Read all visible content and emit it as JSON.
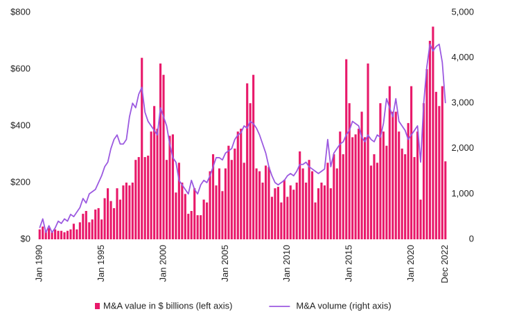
{
  "chart_data": {
    "type": "bar_line",
    "categories": [
      "Jan 1990",
      null,
      null,
      null,
      null,
      null,
      null,
      null,
      null,
      null,
      null,
      null,
      null,
      null,
      null,
      null,
      null,
      null,
      null,
      null,
      "Jan 1995",
      null,
      null,
      null,
      null,
      null,
      null,
      null,
      null,
      null,
      null,
      null,
      null,
      null,
      null,
      null,
      null,
      null,
      null,
      null,
      "Jan 2000",
      null,
      null,
      null,
      null,
      null,
      null,
      null,
      null,
      null,
      null,
      null,
      null,
      null,
      null,
      null,
      null,
      null,
      null,
      null,
      "Jan 2005",
      null,
      null,
      null,
      null,
      null,
      null,
      null,
      null,
      null,
      null,
      null,
      null,
      null,
      null,
      null,
      null,
      null,
      null,
      null,
      "Jan 2010",
      null,
      null,
      null,
      null,
      null,
      null,
      null,
      null,
      null,
      null,
      null,
      null,
      null,
      null,
      null,
      null,
      null,
      null,
      null,
      "Jan 2015",
      null,
      null,
      null,
      null,
      null,
      null,
      null,
      null,
      null,
      null,
      null,
      null,
      null,
      null,
      null,
      null,
      null,
      null,
      null,
      "Jan 2020",
      null,
      null,
      null,
      null,
      null,
      null,
      null,
      null,
      null,
      null,
      "Dec 2022"
    ],
    "series": [
      {
        "name": "M&A value in $ billions (left axis)",
        "color": "#e8196a",
        "kind": "bar",
        "values": [
          35,
          45,
          30,
          40,
          25,
          35,
          30,
          30,
          25,
          30,
          35,
          55,
          35,
          60,
          90,
          100,
          60,
          70,
          105,
          110,
          70,
          145,
          180,
          135,
          110,
          180,
          140,
          190,
          200,
          190,
          200,
          280,
          290,
          640,
          290,
          295,
          380,
          470,
          390,
          620,
          580,
          280,
          365,
          370,
          165,
          270,
          200,
          160,
          90,
          100,
          180,
          85,
          85,
          140,
          130,
          240,
          300,
          190,
          250,
          170,
          250,
          330,
          280,
          320,
          380,
          390,
          270,
          550,
          480,
          580,
          250,
          240,
          200,
          260,
          255,
          150,
          180,
          185,
          130,
          210,
          150,
          190,
          175,
          200,
          310,
          250,
          200,
          280,
          240,
          130,
          180,
          200,
          190,
          270,
          180,
          300,
          250,
          380,
          300,
          635,
          480,
          360,
          370,
          390,
          450,
          360,
          620,
          260,
          300,
          270,
          480,
          380,
          330,
          540,
          450,
          450,
          380,
          320,
          300,
          410,
          540,
          290,
          380,
          140,
          480,
          600,
          700,
          750,
          520,
          470,
          540,
          275
        ]
      },
      {
        "name": "M&A volume (right axis)",
        "color": "#9b59e0",
        "kind": "line",
        "axis": "y2",
        "values": [
          250,
          450,
          150,
          300,
          150,
          250,
          400,
          350,
          450,
          400,
          550,
          500,
          600,
          700,
          900,
          800,
          1000,
          1050,
          1100,
          1250,
          1400,
          1600,
          1700,
          2000,
          2200,
          2300,
          2100,
          2100,
          2200,
          2700,
          3000,
          2900,
          3200,
          3350,
          2800,
          2600,
          2500,
          2400,
          2300,
          2900,
          2700,
          2500,
          2100,
          1800,
          1700,
          1300,
          1200,
          1100,
          1000,
          1300,
          1100,
          1000,
          1200,
          1300,
          1250,
          1400,
          1600,
          1800,
          1800,
          1750,
          1900,
          1950,
          2000,
          2200,
          2300,
          2350,
          2500,
          2450,
          2600,
          2550,
          2450,
          2300,
          2100,
          1900,
          1600,
          1400,
          1250,
          1200,
          1250,
          1300,
          1400,
          1450,
          1400,
          1500,
          1650,
          1650,
          1700,
          1600,
          1550,
          1500,
          1450,
          1500,
          1550,
          2200,
          1600,
          1900,
          2000,
          2100,
          2150,
          2300,
          2400,
          2600,
          2550,
          2500,
          2250,
          2150,
          2300,
          2200,
          2150,
          2300,
          2250,
          2550,
          3100,
          2900,
          2700,
          3100,
          2600,
          2500,
          2400,
          2200,
          2300,
          2400,
          2500,
          1700,
          3000,
          3800,
          4300,
          4150,
          4250,
          4300,
          3900,
          3000
        ]
      }
    ],
    "ylim": [
      0,
      800
    ],
    "yticks": [
      {
        "value": 0,
        "label": "$0"
      },
      {
        "value": 200,
        "label": "$200"
      },
      {
        "value": 400,
        "label": "$400"
      },
      {
        "value": 600,
        "label": "$600"
      },
      {
        "value": 800,
        "label": "$800"
      }
    ],
    "y2lim": [
      0,
      5000
    ],
    "y2ticks": [
      0,
      {
        "value": 1000,
        "label": "1,000"
      },
      {
        "value": 2000,
        "label": "2,000"
      },
      {
        "value": 3000,
        "label": "3,000"
      },
      {
        "value": 4000,
        "label": "4,000"
      },
      {
        "value": 5000,
        "label": "5,000"
      }
    ],
    "grid": false,
    "legend": "bottom"
  }
}
